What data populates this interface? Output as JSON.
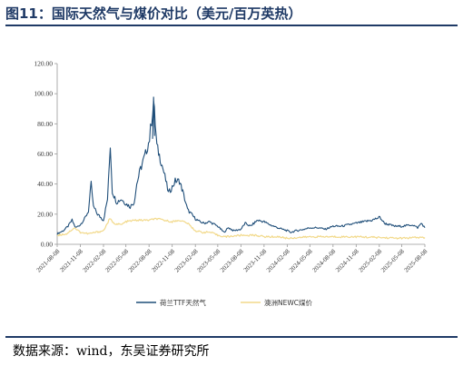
{
  "title": "图11：国际天然气与煤价对比（美元/百万英热）",
  "source": "数据来源：wind，东吴证券研究所",
  "colors": {
    "ttf": "#1f4e79",
    "newc": "#f2d98a",
    "frame": "#1f3a66"
  },
  "chart_data": {
    "type": "line",
    "title": "",
    "xlabel": "",
    "ylabel": "",
    "ylim": [
      0,
      120
    ],
    "yticks": [
      "0.00",
      "20.00",
      "40.00",
      "60.00",
      "80.00",
      "100.00",
      "120.00"
    ],
    "xticks": [
      "2021-08-08",
      "2021-11-08",
      "2022-02-08",
      "2022-05-08",
      "2022-08-08",
      "2022-11-08",
      "2023-02-08",
      "2023-05-08",
      "2023-08-08",
      "2023-11-08",
      "2024-02-08",
      "2024-05-08",
      "2024-08-08",
      "2024-11-08",
      "2025-02-08",
      "2025-05-08",
      "2025-08-08"
    ],
    "grid": false,
    "legend": "bottom",
    "series": [
      {
        "name": "荷兰TTF天然气",
        "points": [
          [
            "2021-08-08",
            7
          ],
          [
            "2021-09-01",
            9
          ],
          [
            "2021-09-20",
            12
          ],
          [
            "2021-10-06",
            16
          ],
          [
            "2021-10-20",
            11
          ],
          [
            "2021-11-08",
            13
          ],
          [
            "2021-11-25",
            17
          ],
          [
            "2021-12-10",
            22
          ],
          [
            "2021-12-21",
            40
          ],
          [
            "2021-12-30",
            25
          ],
          [
            "2022-01-15",
            20
          ],
          [
            "2022-02-08",
            16
          ],
          [
            "2022-02-24",
            30
          ],
          [
            "2022-03-07",
            66
          ],
          [
            "2022-03-15",
            35
          ],
          [
            "2022-04-01",
            28
          ],
          [
            "2022-04-20",
            30
          ],
          [
            "2022-05-08",
            27
          ],
          [
            "2022-05-25",
            25
          ],
          [
            "2022-06-10",
            28
          ],
          [
            "2022-06-20",
            40
          ],
          [
            "2022-07-05",
            50
          ],
          [
            "2022-07-25",
            60
          ],
          [
            "2022-08-10",
            70
          ],
          [
            "2022-08-26",
            95
          ],
          [
            "2022-09-08",
            65
          ],
          [
            "2022-09-25",
            55
          ],
          [
            "2022-10-10",
            45
          ],
          [
            "2022-10-24",
            34
          ],
          [
            "2022-11-08",
            38
          ],
          [
            "2022-11-20",
            42
          ],
          [
            "2022-12-07",
            42
          ],
          [
            "2022-12-20",
            35
          ],
          [
            "2023-01-08",
            23
          ],
          [
            "2023-02-08",
            17
          ],
          [
            "2023-02-25",
            15
          ],
          [
            "2023-03-15",
            14
          ],
          [
            "2023-04-05",
            15
          ],
          [
            "2023-05-08",
            12
          ],
          [
            "2023-06-01",
            8
          ],
          [
            "2023-06-20",
            11
          ],
          [
            "2023-07-10",
            9
          ],
          [
            "2023-08-08",
            10
          ],
          [
            "2023-08-25",
            14
          ],
          [
            "2023-09-15",
            12
          ],
          [
            "2023-10-13",
            16
          ],
          [
            "2023-11-08",
            15
          ],
          [
            "2023-12-01",
            13
          ],
          [
            "2024-01-01",
            11
          ],
          [
            "2024-02-08",
            9
          ],
          [
            "2024-02-22",
            8
          ],
          [
            "2024-03-15",
            9
          ],
          [
            "2024-04-15",
            10
          ],
          [
            "2024-05-08",
            11
          ],
          [
            "2024-06-10",
            11
          ],
          [
            "2024-07-08",
            10
          ],
          [
            "2024-08-08",
            12
          ],
          [
            "2024-09-10",
            12
          ],
          [
            "2024-10-10",
            13
          ],
          [
            "2024-11-08",
            14
          ],
          [
            "2024-12-10",
            15
          ],
          [
            "2025-01-10",
            16
          ],
          [
            "2025-02-10",
            18
          ],
          [
            "2025-02-28",
            14
          ],
          [
            "2025-03-20",
            13
          ],
          [
            "2025-04-10",
            12
          ],
          [
            "2025-05-08",
            12
          ],
          [
            "2025-06-20",
            13
          ],
          [
            "2025-07-10",
            11
          ],
          [
            "2025-07-25",
            14
          ],
          [
            "2025-08-08",
            11
          ]
        ]
      },
      {
        "name": "澳洲NEWC煤价",
        "points": [
          [
            "2021-08-08",
            6
          ],
          [
            "2021-09-15",
            7
          ],
          [
            "2021-10-15",
            11
          ],
          [
            "2021-11-08",
            8
          ],
          [
            "2021-12-10",
            7
          ],
          [
            "2022-01-10",
            8
          ],
          [
            "2022-02-08",
            9
          ],
          [
            "2022-03-05",
            17
          ],
          [
            "2022-03-20",
            14
          ],
          [
            "2022-04-20",
            13
          ],
          [
            "2022-05-08",
            15
          ],
          [
            "2022-06-15",
            16
          ],
          [
            "2022-07-15",
            16
          ],
          [
            "2022-08-08",
            16
          ],
          [
            "2022-09-05",
            17
          ],
          [
            "2022-10-05",
            16
          ],
          [
            "2022-11-08",
            15
          ],
          [
            "2022-12-08",
            16
          ],
          [
            "2023-01-08",
            14
          ],
          [
            "2023-02-08",
            9
          ],
          [
            "2023-03-08",
            8
          ],
          [
            "2023-04-08",
            8
          ],
          [
            "2023-05-08",
            6
          ],
          [
            "2023-06-08",
            5
          ],
          [
            "2023-08-08",
            6
          ],
          [
            "2023-10-08",
            6
          ],
          [
            "2023-11-08",
            5
          ],
          [
            "2024-01-08",
            5
          ],
          [
            "2024-02-08",
            4
          ],
          [
            "2024-05-08",
            5
          ],
          [
            "2024-08-08",
            5
          ],
          [
            "2024-11-08",
            5
          ],
          [
            "2025-02-08",
            4.5
          ],
          [
            "2025-05-08",
            4
          ],
          [
            "2025-07-08",
            4.5
          ],
          [
            "2025-08-08",
            4.5
          ]
        ]
      }
    ]
  }
}
